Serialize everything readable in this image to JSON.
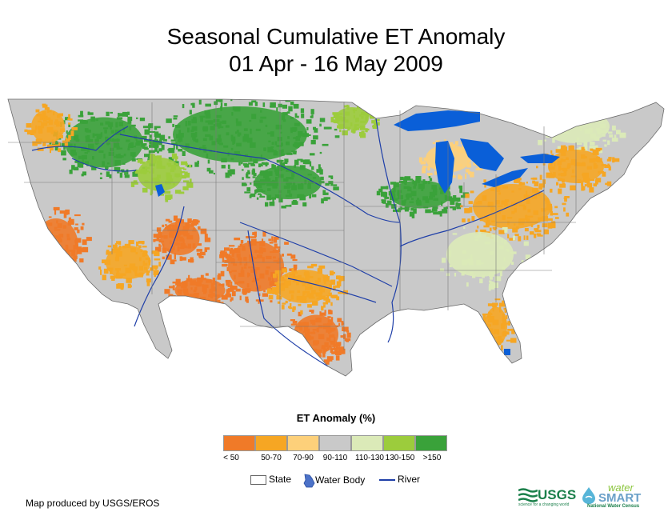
{
  "title": {
    "line1": "Seasonal Cumulative ET Anomaly",
    "line2": "01 Apr - 16 May 2009"
  },
  "legend": {
    "title": "ET Anomaly (%)",
    "classes": [
      {
        "label": "< 50",
        "color": "#f07a28"
      },
      {
        "label": "50-70",
        "color": "#f6a623"
      },
      {
        "label": "70-90",
        "color": "#fdd07a"
      },
      {
        "label": "90-110",
        "color": "#c9c9c9"
      },
      {
        "label": "110-130",
        "color": "#dbeab8"
      },
      {
        "label": "130-150",
        "color": "#9ccc3c"
      },
      {
        "label": ">150",
        "color": "#3aa23a"
      }
    ],
    "key": {
      "state": "State",
      "water_body": "Water Body",
      "river": "River"
    }
  },
  "credit": "Map produced by USGS/EROS",
  "logos": {
    "usgs": "USGS",
    "usgs_tagline": "science for a changing world",
    "watersmart_top": "water",
    "watersmart_main": "SMART",
    "watersmart_sub": "National Water Census"
  },
  "colors": {
    "water": "#0a5fd8",
    "river": "#1f3fa8",
    "state_line": "#7a7a7a",
    "usgs_green": "#1a7f4a"
  }
}
